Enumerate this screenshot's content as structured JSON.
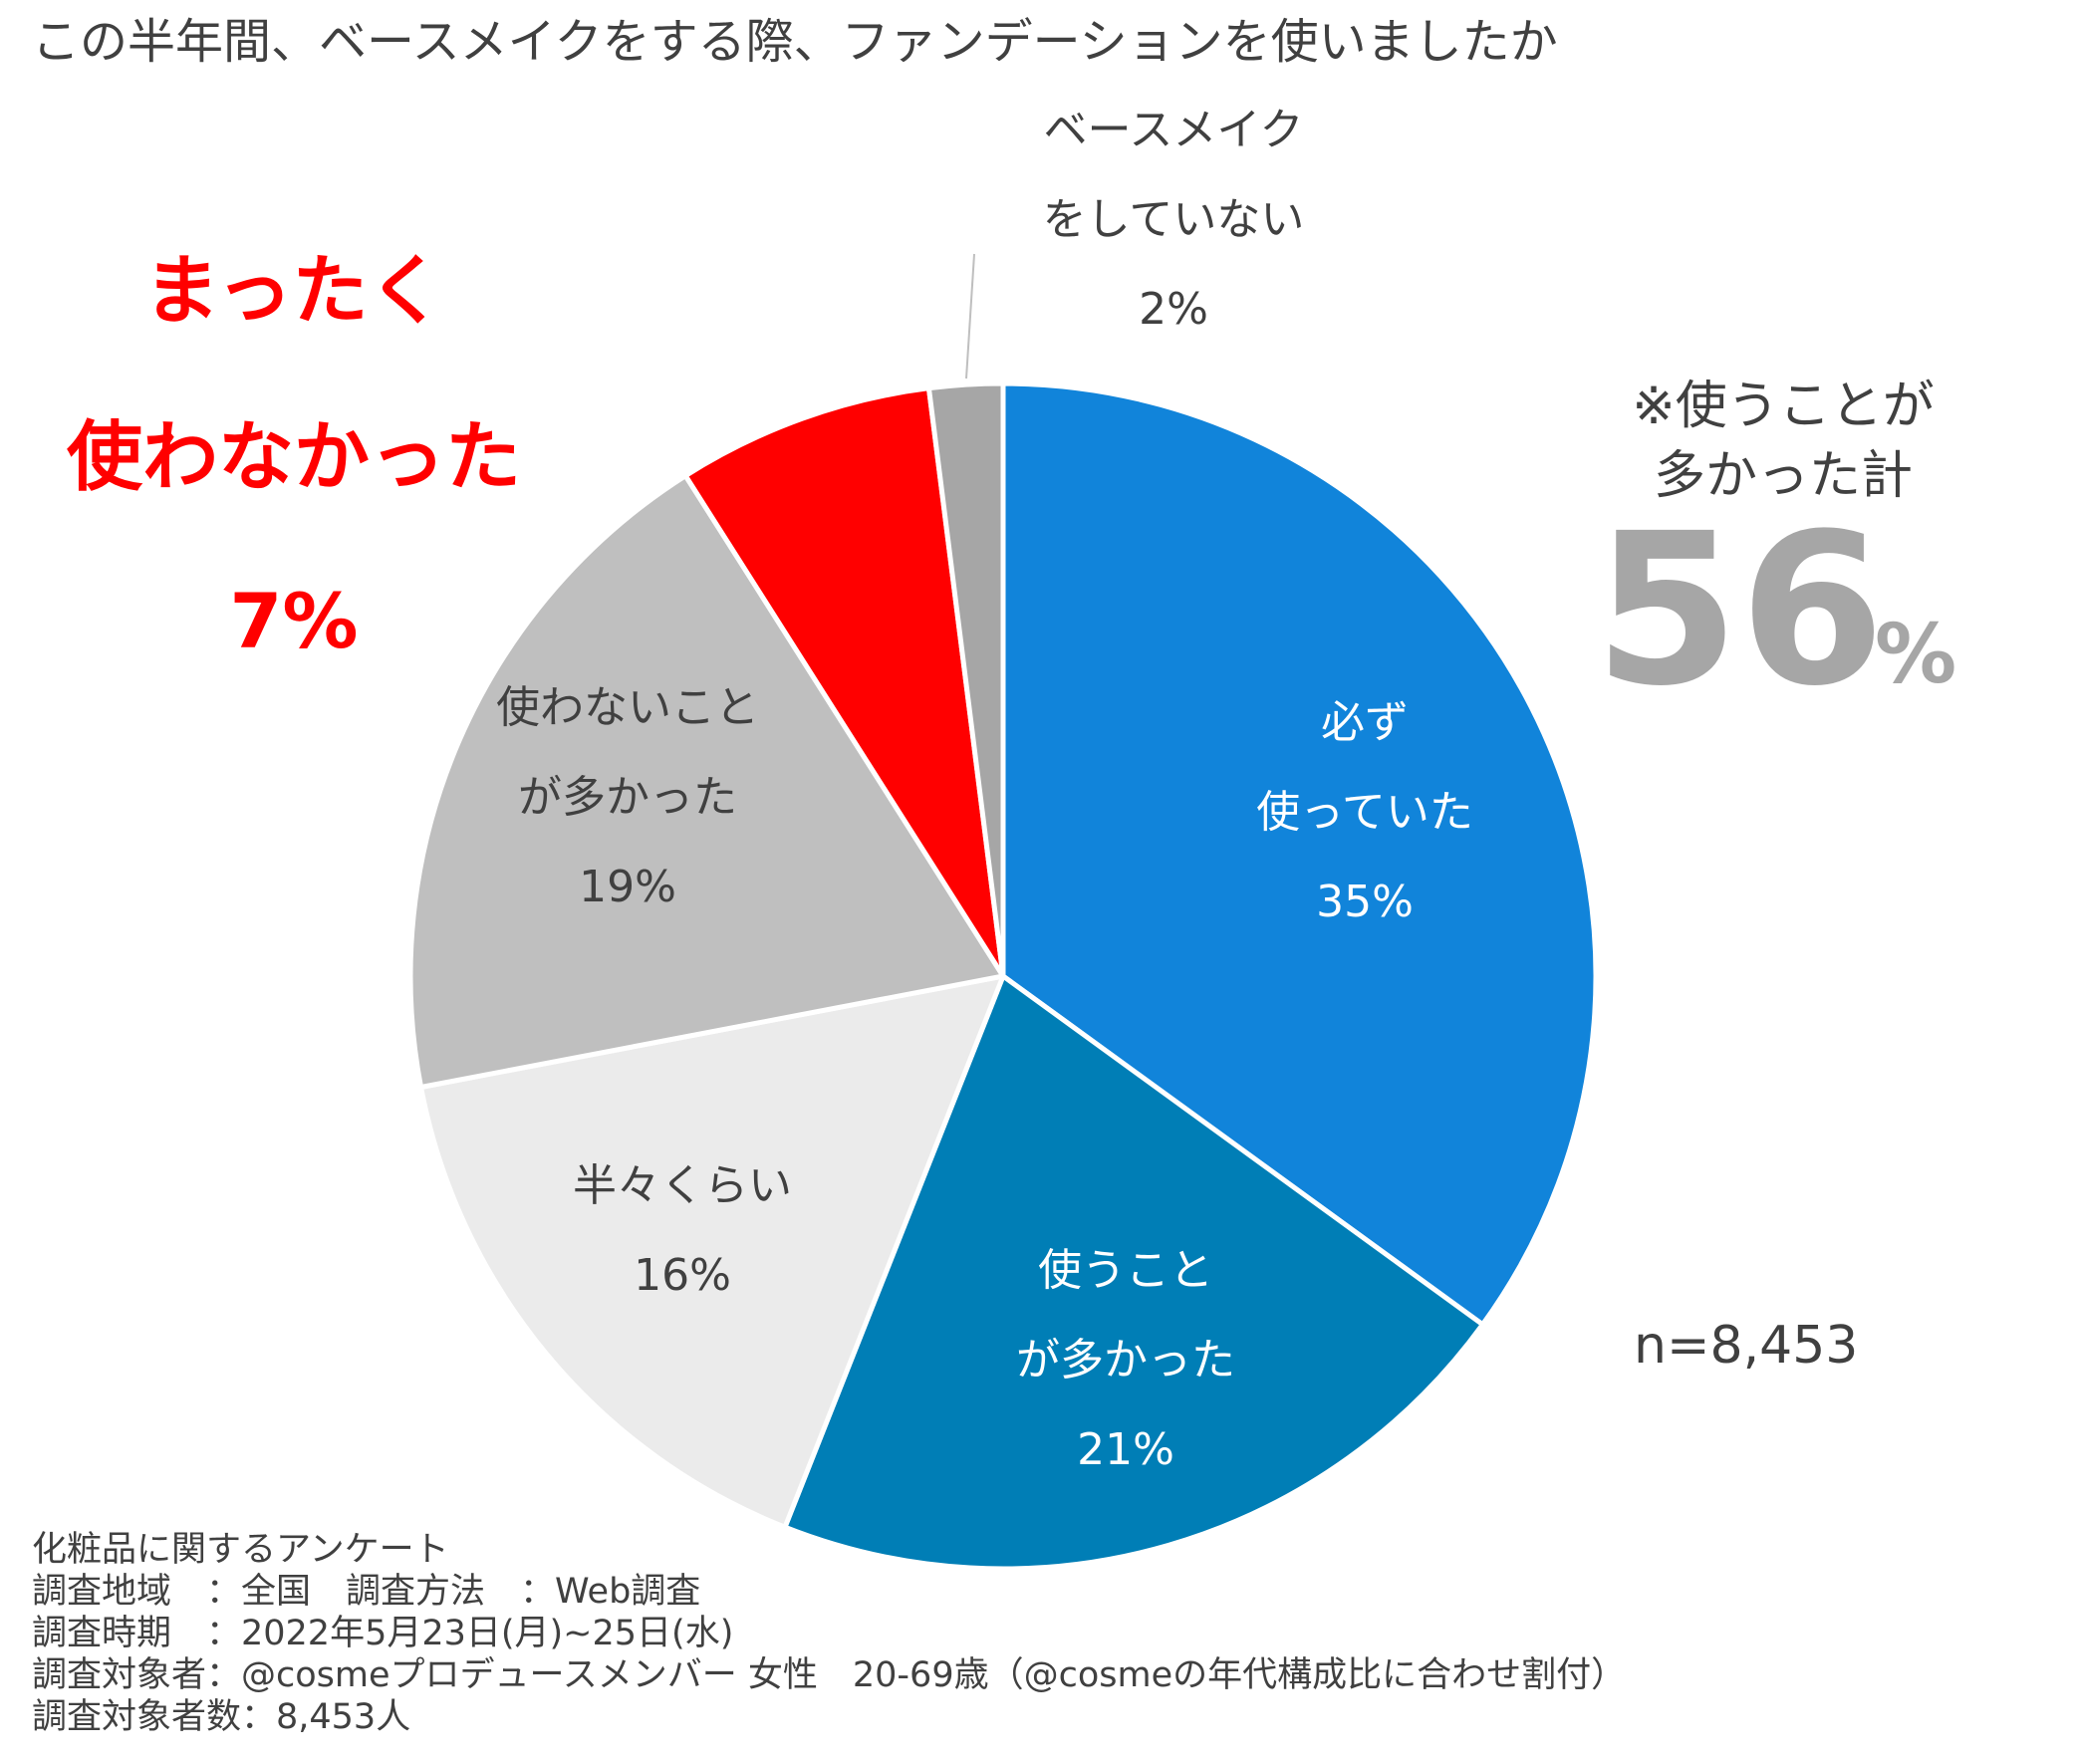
{
  "chart_data": {
    "type": "pie",
    "title": "この半年間、ベースメイクをする際、ファンデーションを使いましたか",
    "slices": [
      {
        "name": "必ず使っていた",
        "label_lines": [
          "必ず",
          "使っていた"
        ],
        "value": 35,
        "value_label": "35%",
        "color": "#1184da",
        "text_color": "#ffffff"
      },
      {
        "name": "使うことが多かった",
        "label_lines": [
          "使うこと",
          "が多かった"
        ],
        "value": 21,
        "value_label": "21%",
        "color": "#007eb6",
        "text_color": "#ffffff"
      },
      {
        "name": "半々くらい",
        "label_lines": [
          "半々くらい"
        ],
        "value": 16,
        "value_label": "16%",
        "color": "#ebebeb",
        "text_color": "#404040"
      },
      {
        "name": "使わないことが多かった",
        "label_lines": [
          "使わないこと",
          "が多かった"
        ],
        "value": 19,
        "value_label": "19%",
        "color": "#bfbfbf",
        "text_color": "#404040"
      },
      {
        "name": "まったく使わなかった",
        "label_lines": [],
        "value": 7,
        "value_label": "",
        "color": "#ff0000",
        "text_color": "#404040"
      },
      {
        "name": "ベースメイクをしていない",
        "label_lines": [
          "ベースメイク",
          "をしていない"
        ],
        "value": 2,
        "value_label": "2%",
        "color": "#a6a6a6",
        "text_color": "#404040"
      }
    ],
    "slice_border_color": "#ffffff"
  },
  "callout_never": {
    "lines": [
      "まったく",
      "使わなかった"
    ],
    "value": "7%",
    "color": "#ff0000"
  },
  "callout_total": {
    "lines": [
      "※使うことが",
      "多かった計"
    ],
    "big_number": "56",
    "unit": "%",
    "number_color": "#a6a6a6"
  },
  "sample_size": "n=8,453",
  "footnote": {
    "lines": [
      "化粧品に関するアンケート",
      "調査地域　：全国　調査方法　：Web調査",
      "調査時期　：2022年5月23日(月)~25日(水)",
      "調査対象者：@cosmeプロデュースメンバー 女性　20-69歳（@cosmeの年代構成比に合わせ割付）",
      "調査対象者数：8,453人"
    ]
  }
}
